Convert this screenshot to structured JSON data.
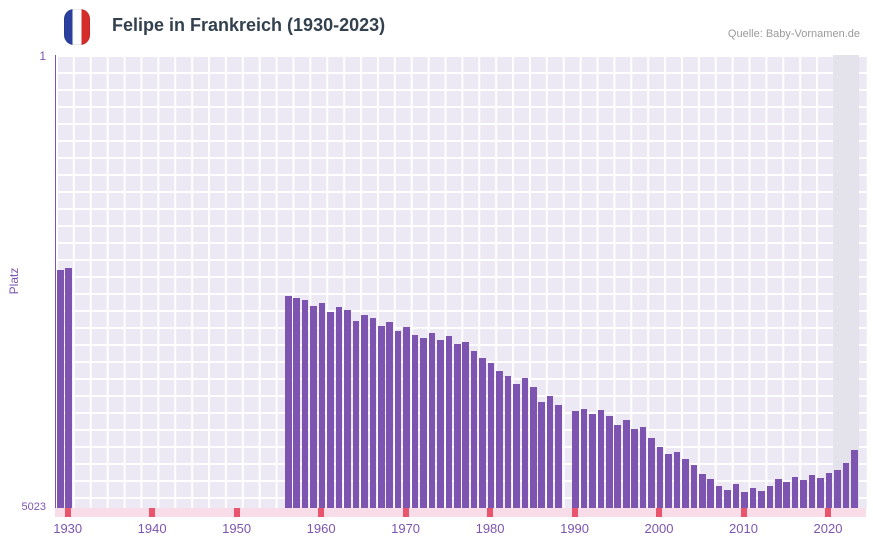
{
  "header": {
    "title": "Felipe in Frankreich (1930-2023)",
    "source": "Quelle: Baby-Vornamen.de",
    "flag": "france-flag"
  },
  "colors": {
    "bar": "#7d55b0",
    "axis_text": "#7d55b0",
    "title": "#33414e",
    "source": "#9a9a9a",
    "plot_bg": "#ece9f4",
    "grid": "#ffffff",
    "strip": "#f8dce7",
    "strip_mark": "#e8556d",
    "highlight_band": "#e4e2ea",
    "flag_blue": "#2b3f9e",
    "flag_red": "#d52b2b"
  },
  "chart_data": {
    "type": "bar",
    "title": "Felipe in Frankreich (1930-2023)",
    "xlabel": "",
    "ylabel": "Platz",
    "y_axis": {
      "min": 1,
      "max": 5023,
      "inverted": true,
      "top_label": "1",
      "bottom_label": "5023"
    },
    "x_domain": [
      1928.5,
      2024.5
    ],
    "x_ticks": [
      1930,
      1940,
      1950,
      1960,
      1970,
      1980,
      1990,
      2000,
      2010,
      2020
    ],
    "bar_width_years": 0.78,
    "highlight_band": {
      "from": 2020.5,
      "to": 2023.5
    },
    "grid": true,
    "legend": false,
    "series_format": [
      "year",
      "rank"
    ],
    "series": [
      [
        1929,
        2380
      ],
      [
        1930,
        2360
      ],
      [
        1956,
        2670
      ],
      [
        1957,
        2690
      ],
      [
        1958,
        2720
      ],
      [
        1959,
        2780
      ],
      [
        1960,
        2750
      ],
      [
        1961,
        2850
      ],
      [
        1962,
        2800
      ],
      [
        1963,
        2830
      ],
      [
        1964,
        2950
      ],
      [
        1965,
        2880
      ],
      [
        1966,
        2920
      ],
      [
        1967,
        3000
      ],
      [
        1968,
        2960
      ],
      [
        1969,
        3060
      ],
      [
        1970,
        3020
      ],
      [
        1971,
        3100
      ],
      [
        1972,
        3140
      ],
      [
        1973,
        3080
      ],
      [
        1974,
        3160
      ],
      [
        1975,
        3120
      ],
      [
        1976,
        3200
      ],
      [
        1977,
        3180
      ],
      [
        1978,
        3280
      ],
      [
        1979,
        3360
      ],
      [
        1980,
        3420
      ],
      [
        1981,
        3500
      ],
      [
        1982,
        3560
      ],
      [
        1983,
        3650
      ],
      [
        1984,
        3580
      ],
      [
        1985,
        3680
      ],
      [
        1986,
        3850
      ],
      [
        1987,
        3780
      ],
      [
        1988,
        3880
      ],
      [
        1990,
        3950
      ],
      [
        1991,
        3920
      ],
      [
        1992,
        3980
      ],
      [
        1993,
        3940
      ],
      [
        1994,
        4000
      ],
      [
        1995,
        4100
      ],
      [
        1996,
        4050
      ],
      [
        1997,
        4150
      ],
      [
        1998,
        4120
      ],
      [
        1999,
        4250
      ],
      [
        2000,
        4350
      ],
      [
        2001,
        4420
      ],
      [
        2002,
        4400
      ],
      [
        2003,
        4480
      ],
      [
        2004,
        4550
      ],
      [
        2005,
        4650
      ],
      [
        2006,
        4700
      ],
      [
        2007,
        4780
      ],
      [
        2008,
        4820
      ],
      [
        2009,
        4760
      ],
      [
        2010,
        4850
      ],
      [
        2011,
        4800
      ],
      [
        2012,
        4830
      ],
      [
        2013,
        4780
      ],
      [
        2014,
        4700
      ],
      [
        2015,
        4730
      ],
      [
        2016,
        4680
      ],
      [
        2017,
        4710
      ],
      [
        2018,
        4660
      ],
      [
        2019,
        4690
      ],
      [
        2020,
        4640
      ],
      [
        2021,
        4600
      ],
      [
        2022,
        4520
      ],
      [
        2023,
        4380
      ]
    ]
  }
}
